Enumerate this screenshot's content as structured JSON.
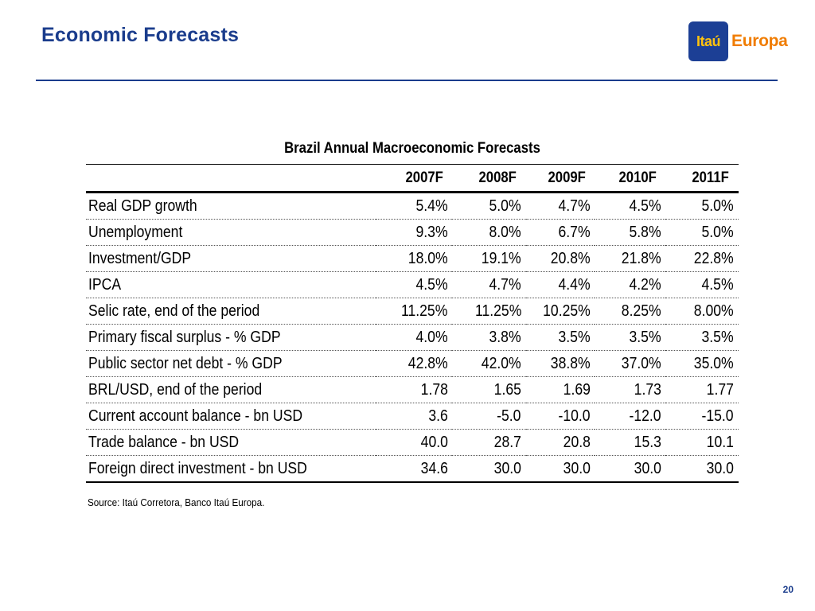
{
  "slide": {
    "title": "Economic Forecasts",
    "page_number": "20",
    "source": "Source: Itaú Corretora, Banco Itaú Europa."
  },
  "logo": {
    "box_text": "Itaú",
    "word": "Europa",
    "colors": {
      "box": "#1c3f95",
      "box_text": "#ffc20e",
      "word": "#f07c00"
    }
  },
  "table": {
    "title": "Brazil Annual Macroeconomic Forecasts",
    "columns": [
      "",
      "2007F",
      "2008F",
      "2009F",
      "2010F",
      "2011F"
    ],
    "rows": [
      {
        "label": "Real GDP growth",
        "values": [
          "5.4%",
          "5.0%",
          "4.7%",
          "4.5%",
          "5.0%"
        ]
      },
      {
        "label": "Unemployment",
        "values": [
          "9.3%",
          "8.0%",
          "6.7%",
          "5.8%",
          "5.0%"
        ]
      },
      {
        "label": "Investment/GDP",
        "values": [
          "18.0%",
          "19.1%",
          "20.8%",
          "21.8%",
          "22.8%"
        ]
      },
      {
        "label": "IPCA",
        "values": [
          "4.5%",
          "4.7%",
          "4.4%",
          "4.2%",
          "4.5%"
        ]
      },
      {
        "label": "Selic rate, end of the period",
        "values": [
          "11.25%",
          "11.25%",
          "10.25%",
          "8.25%",
          "8.00%"
        ]
      },
      {
        "label": "Primary fiscal surplus - % GDP",
        "values": [
          "4.0%",
          "3.8%",
          "3.5%",
          "3.5%",
          "3.5%"
        ]
      },
      {
        "label": "Public sector net debt - % GDP",
        "values": [
          "42.8%",
          "42.0%",
          "38.8%",
          "37.0%",
          "35.0%"
        ]
      },
      {
        "label": "BRL/USD, end of the period",
        "values": [
          "1.78",
          "1.65",
          "1.69",
          "1.73",
          "1.77"
        ]
      },
      {
        "label": "Current account balance - bn USD",
        "values": [
          "3.6",
          "-5.0",
          "-10.0",
          "-12.0",
          "-15.0"
        ]
      },
      {
        "label": "Trade balance - bn USD",
        "values": [
          "40.0",
          "28.7",
          "20.8",
          "15.3",
          "10.1"
        ]
      },
      {
        "label": "Foreign direct investment - bn USD",
        "values": [
          "34.6",
          "30.0",
          "30.0",
          "30.0",
          "30.0"
        ]
      }
    ]
  },
  "colors": {
    "title": "#1a3c8c",
    "rule": "#1a3c8c"
  }
}
